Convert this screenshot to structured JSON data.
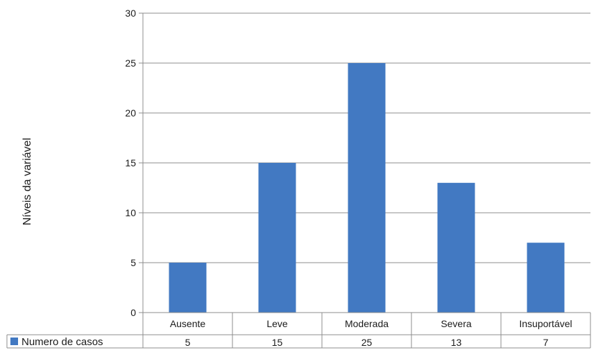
{
  "chart_data": {
    "type": "bar",
    "categories": [
      "Ausente",
      "Leve",
      "Moderada",
      "Severa",
      "Insuportável"
    ],
    "series": [
      {
        "name": "Numero de casos",
        "values": [
          5,
          15,
          25,
          13,
          7
        ],
        "color": "#4279c2"
      }
    ],
    "ylabel": "Níveis da variável",
    "xlabel": "",
    "ylim": [
      0,
      30
    ],
    "yticks": [
      0,
      5,
      10,
      15,
      20,
      25,
      30
    ],
    "grid": true,
    "data_table": true,
    "legend_position": "data-table-row"
  }
}
